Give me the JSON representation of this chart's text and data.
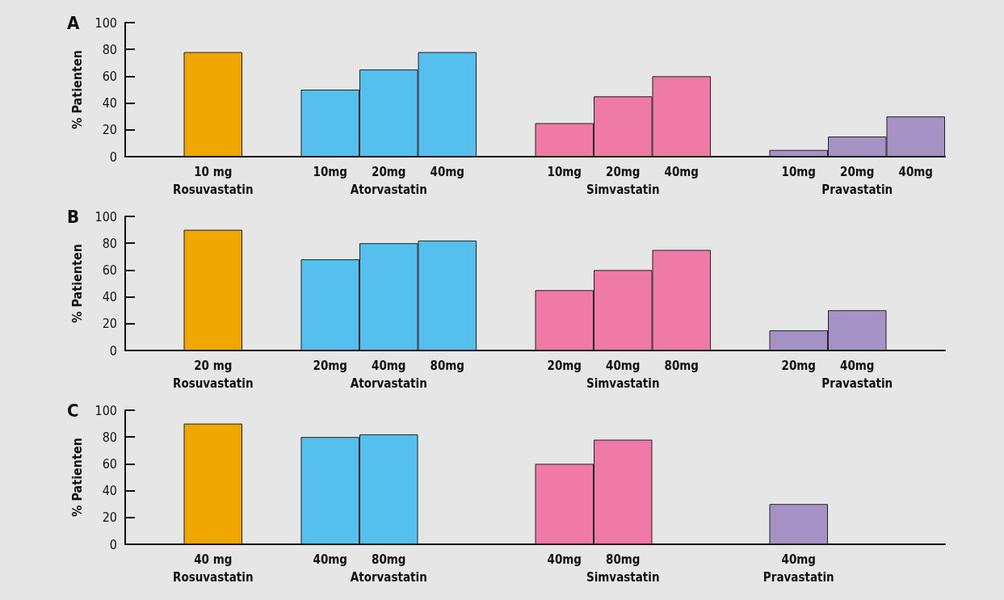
{
  "chart_data": [
    {
      "type": "bar",
      "title": "A",
      "ylabel": "% Patienten",
      "ylim": [
        0,
        100
      ],
      "yticks": [
        0,
        20,
        40,
        60,
        80,
        100
      ],
      "grid": false,
      "categories": [
        null,
        "10 mg\nRosuvastatin",
        null,
        "10mg",
        "20mg\nAtorvastatin",
        "40mg",
        null,
        "10mg",
        "20mg\nSimvastatin",
        "40mg",
        null,
        "10mg",
        "20mg\nPravastatin",
        "40mg"
      ],
      "values": [
        null,
        78,
        null,
        50,
        65,
        78,
        null,
        25,
        45,
        60,
        null,
        5,
        15,
        30
      ],
      "colors": [
        null,
        "#f0a800",
        null,
        "#55bfee",
        "#55bfee",
        "#55bfee",
        null,
        "#ef7aa6",
        "#ef7aa6",
        "#ef7aa6",
        null,
        "#a593c6",
        "#a593c6",
        "#a593c6"
      ]
    },
    {
      "type": "bar",
      "title": "B",
      "ylabel": "% Patienten",
      "ylim": [
        0,
        100
      ],
      "yticks": [
        0,
        20,
        40,
        60,
        80,
        100
      ],
      "grid": false,
      "categories": [
        null,
        "20 mg\nRosuvastatin",
        null,
        "20mg",
        "40mg\nAtorvastatin",
        "80mg",
        null,
        "20mg",
        "40mg\nSimvastatin",
        "80mg",
        null,
        "20mg",
        "40mg\nPravastatin",
        null
      ],
      "values": [
        null,
        90,
        null,
        68,
        80,
        82,
        null,
        45,
        60,
        75,
        null,
        15,
        30,
        null
      ],
      "colors": [
        null,
        "#f0a800",
        null,
        "#55bfee",
        "#55bfee",
        "#55bfee",
        null,
        "#ef7aa6",
        "#ef7aa6",
        "#ef7aa6",
        null,
        "#a593c6",
        "#a593c6",
        null
      ]
    },
    {
      "type": "bar",
      "title": "C",
      "ylabel": "% Patienten",
      "ylim": [
        0,
        100
      ],
      "yticks": [
        0,
        20,
        40,
        60,
        80,
        100
      ],
      "grid": false,
      "categories": [
        null,
        "40 mg\nRosuvastatin",
        null,
        "40mg",
        "80mg\nAtorvastatin",
        null,
        null,
        "40mg",
        "80mg\nSimvastatin",
        null,
        null,
        "40mg\nPravastatin",
        null,
        null
      ],
      "values": [
        null,
        90,
        null,
        80,
        82,
        null,
        null,
        60,
        78,
        null,
        null,
        30,
        null,
        null
      ],
      "colors": [
        null,
        "#f0a800",
        null,
        "#55bfee",
        "#55bfee",
        null,
        null,
        "#ef7aa6",
        "#ef7aa6",
        null,
        null,
        "#a593c6",
        null,
        null
      ]
    }
  ]
}
